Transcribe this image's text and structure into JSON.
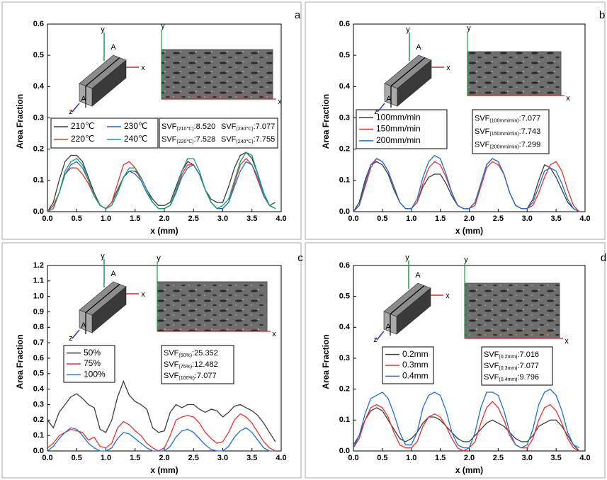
{
  "chart_data": [
    {
      "type": "line",
      "panel_label": "a",
      "xlabel": "x (mm)",
      "ylabel": "Area Fraction",
      "x": [
        0,
        0.1,
        0.2,
        0.3,
        0.4,
        0.5,
        0.6,
        0.7,
        0.8,
        0.9,
        1,
        1.1,
        1.2,
        1.3,
        1.4,
        1.5,
        1.6,
        1.7,
        1.8,
        1.9,
        2,
        2.1,
        2.2,
        2.3,
        2.4,
        2.5,
        2.6,
        2.7,
        2.8,
        2.9,
        3,
        3.1,
        3.2,
        3.3,
        3.4,
        3.5,
        3.6,
        3.7,
        3.8,
        3.9
      ],
      "xlim": [
        0,
        4
      ],
      "xticks": [
        {
          "value": 0,
          "label": "0.0"
        },
        0.5,
        {
          "value": 1,
          "label": "1.0"
        },
        1.5,
        {
          "value": 2,
          "label": "2.0"
        },
        2.5,
        {
          "value": 3,
          "label": "3.0"
        },
        3.5,
        {
          "value": 4,
          "label": "4.0"
        }
      ],
      "ylim": [
        0,
        0.6
      ],
      "yticks": [
        {
          "value": 0,
          "label": "0.0"
        },
        0.1,
        0.2,
        0.3,
        0.4,
        0.5,
        0.6
      ],
      "series": [
        {
          "name": "210℃",
          "color": "#3c3c3c",
          "values": [
            0.0,
            0.03,
            0.1,
            0.16,
            0.18,
            0.18,
            0.16,
            0.11,
            0.06,
            0.02,
            0.01,
            0.03,
            0.07,
            0.11,
            0.13,
            0.13,
            0.11,
            0.07,
            0.04,
            0.02,
            0.02,
            0.03,
            0.08,
            0.13,
            0.16,
            0.15,
            0.12,
            0.07,
            0.04,
            0.03,
            0.03,
            0.08,
            0.14,
            0.18,
            0.19,
            0.17,
            0.12,
            0.06,
            0.02,
            0.03
          ]
        },
        {
          "name": "220℃",
          "color": "#e8312f",
          "values": [
            0.0,
            0.02,
            0.06,
            0.12,
            0.14,
            0.14,
            0.12,
            0.09,
            0.05,
            0.02,
            0.01,
            0.03,
            0.09,
            0.15,
            0.16,
            0.14,
            0.1,
            0.06,
            0.03,
            0.01,
            0.01,
            0.02,
            0.06,
            0.12,
            0.15,
            0.15,
            0.12,
            0.07,
            0.03,
            0.01,
            0.01,
            0.03,
            0.09,
            0.15,
            0.17,
            0.15,
            0.1,
            0.05,
            0.02,
            0.01
          ]
        },
        {
          "name": "230℃",
          "color": "#1f6fd1",
          "values": [
            0.0,
            0.01,
            0.06,
            0.12,
            0.15,
            0.16,
            0.14,
            0.1,
            0.05,
            0.02,
            0.01,
            0.02,
            0.06,
            0.11,
            0.13,
            0.12,
            0.1,
            0.06,
            0.03,
            0.01,
            0.01,
            0.02,
            0.06,
            0.11,
            0.14,
            0.15,
            0.12,
            0.07,
            0.03,
            0.01,
            0.01,
            0.03,
            0.08,
            0.13,
            0.16,
            0.15,
            0.11,
            0.05,
            0.02,
            0.01
          ]
        },
        {
          "name": "240℃",
          "color": "#17a06f",
          "values": [
            0.0,
            0.01,
            0.06,
            0.13,
            0.16,
            0.17,
            0.15,
            0.1,
            0.05,
            0.02,
            0.01,
            0.02,
            0.06,
            0.11,
            0.14,
            0.14,
            0.11,
            0.07,
            0.03,
            0.01,
            0.01,
            0.02,
            0.07,
            0.13,
            0.17,
            0.17,
            0.13,
            0.07,
            0.03,
            0.01,
            0.02,
            0.04,
            0.1,
            0.16,
            0.19,
            0.18,
            0.12,
            0.06,
            0.02,
            0.01
          ]
        }
      ],
      "annotations": [
        {
          "main": "SVF",
          "sub": "(210℃)",
          "rest": ":8.520"
        },
        {
          "main": "SVF",
          "sub": "(220℃)",
          "rest": ":7.528"
        },
        {
          "main": "SVF",
          "sub": "(230℃)",
          "rest": ":7.077"
        },
        {
          "main": "SVF",
          "sub": "(240℃)",
          "rest": ":7.755"
        }
      ],
      "inset_labels": [
        "y",
        "A",
        "x",
        "A",
        "z",
        "y",
        "x"
      ]
    },
    {
      "type": "line",
      "panel_label": "b",
      "xlabel": "x (mm)",
      "ylabel": "Area Fraction",
      "x": [
        0,
        0.1,
        0.2,
        0.3,
        0.4,
        0.5,
        0.6,
        0.7,
        0.8,
        0.9,
        1,
        1.1,
        1.2,
        1.3,
        1.4,
        1.5,
        1.6,
        1.7,
        1.8,
        1.9,
        2,
        2.1,
        2.2,
        2.3,
        2.4,
        2.5,
        2.6,
        2.7,
        2.8,
        2.9,
        3,
        3.1,
        3.2,
        3.3,
        3.4,
        3.5,
        3.6,
        3.7,
        3.8,
        3.9
      ],
      "xlim": [
        0,
        4
      ],
      "xticks": [
        {
          "value": 0,
          "label": "0.0"
        },
        0.5,
        {
          "value": 1,
          "label": "1.0"
        },
        1.5,
        {
          "value": 2,
          "label": "2.0"
        },
        2.5,
        {
          "value": 3,
          "label": "3.0"
        },
        3.5,
        {
          "value": 4,
          "label": "4.0"
        }
      ],
      "ylim": [
        0,
        0.6
      ],
      "yticks": [
        {
          "value": 0,
          "label": "0.0"
        },
        0.1,
        0.2,
        0.3,
        0.4,
        0.5,
        0.6
      ],
      "series": [
        {
          "name": "100mm/min",
          "color": "#3c3c3c",
          "values": [
            0.0,
            0.03,
            0.1,
            0.15,
            0.16,
            0.15,
            0.12,
            0.07,
            0.03,
            0.01,
            0.01,
            0.03,
            0.08,
            0.11,
            0.12,
            0.12,
            0.09,
            0.05,
            0.02,
            0.01,
            0.01,
            0.03,
            0.09,
            0.15,
            0.17,
            0.16,
            0.12,
            0.06,
            0.02,
            0.01,
            0.01,
            0.04,
            0.1,
            0.15,
            0.14,
            0.11,
            0.07,
            0.03,
            0.01,
            0.0
          ]
        },
        {
          "name": "150mm/min",
          "color": "#e8312f",
          "values": [
            0.0,
            0.02,
            0.08,
            0.14,
            0.17,
            0.16,
            0.13,
            0.08,
            0.03,
            0.01,
            0.01,
            0.03,
            0.09,
            0.14,
            0.16,
            0.15,
            0.11,
            0.06,
            0.02,
            0.01,
            0.01,
            0.02,
            0.08,
            0.14,
            0.16,
            0.15,
            0.12,
            0.06,
            0.02,
            0.01,
            0.01,
            0.02,
            0.06,
            0.11,
            0.15,
            0.16,
            0.13,
            0.07,
            0.02,
            0.0
          ]
        },
        {
          "name": "200mm/min",
          "color": "#1f6fd1",
          "values": [
            0.0,
            0.02,
            0.09,
            0.15,
            0.17,
            0.16,
            0.13,
            0.08,
            0.03,
            0.01,
            0.01,
            0.04,
            0.11,
            0.16,
            0.18,
            0.17,
            0.12,
            0.06,
            0.02,
            0.01,
            0.01,
            0.03,
            0.09,
            0.15,
            0.17,
            0.16,
            0.12,
            0.06,
            0.02,
            0.01,
            0.01,
            0.03,
            0.08,
            0.13,
            0.14,
            0.13,
            0.09,
            0.04,
            0.01,
            0.0
          ]
        }
      ],
      "annotations": [
        {
          "main": "SVF",
          "sub": "(100mm/min)",
          "rest": ":7.077"
        },
        {
          "main": "SVF",
          "sub": "(150mm/min)",
          "rest": ":7.743"
        },
        {
          "main": "SVF",
          "sub": "(200mm/min)",
          "rest": ":7.299"
        }
      ],
      "inset_labels": [
        "y",
        "A",
        "x",
        "A",
        "z",
        "y",
        "x"
      ]
    },
    {
      "type": "line",
      "panel_label": "c",
      "xlabel": "x (mm)",
      "ylabel": "Area Fraction",
      "x": [
        0,
        0.1,
        0.2,
        0.3,
        0.4,
        0.5,
        0.6,
        0.7,
        0.8,
        0.9,
        1,
        1.1,
        1.2,
        1.3,
        1.4,
        1.5,
        1.6,
        1.7,
        1.8,
        1.9,
        2,
        2.1,
        2.2,
        2.3,
        2.4,
        2.5,
        2.6,
        2.7,
        2.8,
        2.9,
        3,
        3.1,
        3.2,
        3.3,
        3.4,
        3.5,
        3.6,
        3.7,
        3.8,
        3.9
      ],
      "xlim": [
        0,
        4
      ],
      "xticks": [
        {
          "value": 0,
          "label": "0.0"
        },
        0.5,
        {
          "value": 1,
          "label": "1.0"
        },
        1.5,
        {
          "value": 2,
          "label": "2.0"
        },
        2.5,
        {
          "value": 3,
          "label": "3.0"
        },
        3.5,
        {
          "value": 4,
          "label": "4.0"
        }
      ],
      "ylim": [
        0,
        1.2
      ],
      "yticks": [
        {
          "value": 0,
          "label": "0.0"
        },
        0.1,
        0.2,
        0.3,
        0.4,
        0.5,
        0.6,
        0.7,
        0.8,
        0.9,
        {
          "value": 1,
          "label": "1.0"
        },
        1.1,
        1.2
      ],
      "series": [
        {
          "name": "50%",
          "color": "#3c3c3c",
          "values": [
            0.2,
            0.15,
            0.25,
            0.3,
            0.35,
            0.37,
            0.34,
            0.3,
            0.28,
            0.14,
            0.12,
            0.2,
            0.35,
            0.45,
            0.36,
            0.32,
            0.3,
            0.27,
            0.15,
            0.12,
            0.13,
            0.25,
            0.3,
            0.28,
            0.3,
            0.3,
            0.27,
            0.25,
            0.27,
            0.26,
            0.22,
            0.25,
            0.29,
            0.3,
            0.28,
            0.26,
            0.23,
            0.18,
            0.12,
            0.06
          ]
        },
        {
          "name": "75%",
          "color": "#e8312f",
          "values": [
            0.02,
            0.05,
            0.1,
            0.12,
            0.14,
            0.13,
            0.12,
            0.07,
            0.09,
            0.03,
            0.02,
            0.05,
            0.15,
            0.19,
            0.17,
            0.13,
            0.1,
            0.05,
            0.02,
            0.0,
            0.02,
            0.1,
            0.2,
            0.22,
            0.23,
            0.22,
            0.18,
            0.12,
            0.08,
            0.05,
            0.06,
            0.12,
            0.2,
            0.24,
            0.22,
            0.18,
            0.12,
            0.06,
            0.02,
            0.0
          ]
        },
        {
          "name": "100%",
          "color": "#1f6fd1",
          "values": [
            0.0,
            0.03,
            0.08,
            0.12,
            0.15,
            0.14,
            0.1,
            0.05,
            0.02,
            0.0,
            0.0,
            0.02,
            0.08,
            0.12,
            0.11,
            0.08,
            0.05,
            0.02,
            0.0,
            0.0,
            0.0,
            0.03,
            0.09,
            0.13,
            0.14,
            0.12,
            0.08,
            0.04,
            0.01,
            0.0,
            0.0,
            0.03,
            0.09,
            0.13,
            0.15,
            0.12,
            0.07,
            0.02,
            0.0,
            0.0
          ]
        }
      ],
      "annotations": [
        {
          "main": "SVF",
          "sub": "(50%)",
          "rest": ":25.352"
        },
        {
          "main": "SVF",
          "sub": "(75%)",
          "rest": ":12.482"
        },
        {
          "main": "SVF",
          "sub": "(100%)",
          "rest": ":7.077"
        }
      ],
      "inset_labels": [
        "y",
        "A",
        "x",
        "A",
        "z",
        "y",
        "x"
      ]
    },
    {
      "type": "line",
      "panel_label": "d",
      "xlabel": "x (mm)",
      "ylabel": "Area Fraction",
      "x": [
        0,
        0.1,
        0.2,
        0.3,
        0.4,
        0.5,
        0.6,
        0.7,
        0.8,
        0.9,
        1,
        1.1,
        1.2,
        1.3,
        1.4,
        1.5,
        1.6,
        1.7,
        1.8,
        1.9,
        2,
        2.1,
        2.2,
        2.3,
        2.4,
        2.5,
        2.6,
        2.7,
        2.8,
        2.9,
        3,
        3.1,
        3.2,
        3.3,
        3.4,
        3.5,
        3.6,
        3.7,
        3.8,
        3.9
      ],
      "xlim": [
        0,
        4
      ],
      "xticks": [
        {
          "value": 0,
          "label": "0.0"
        },
        0.5,
        {
          "value": 1,
          "label": "1.0"
        },
        1.5,
        {
          "value": 2,
          "label": "2.0"
        },
        2.5,
        {
          "value": 3,
          "label": "3.0"
        },
        3.5,
        {
          "value": 4,
          "label": "4.0"
        }
      ],
      "ylim": [
        0,
        0.6
      ],
      "yticks": [
        {
          "value": 0,
          "label": "0.0"
        },
        0.1,
        0.2,
        0.3,
        0.4,
        0.5,
        0.6
      ],
      "series": [
        {
          "name": "0.2mm",
          "color": "#3c3c3c",
          "values": [
            0.02,
            0.05,
            0.1,
            0.13,
            0.14,
            0.13,
            0.1,
            0.07,
            0.04,
            0.03,
            0.04,
            0.06,
            0.09,
            0.11,
            0.11,
            0.1,
            0.08,
            0.06,
            0.04,
            0.03,
            0.03,
            0.05,
            0.07,
            0.09,
            0.1,
            0.09,
            0.08,
            0.06,
            0.04,
            0.03,
            0.03,
            0.05,
            0.08,
            0.09,
            0.1,
            0.1,
            0.08,
            0.05,
            0.02,
            0.0
          ]
        },
        {
          "name": "0.3mm",
          "color": "#e8312f",
          "values": [
            0.01,
            0.04,
            0.1,
            0.14,
            0.15,
            0.14,
            0.11,
            0.06,
            0.02,
            0.01,
            0.01,
            0.03,
            0.08,
            0.11,
            0.12,
            0.11,
            0.08,
            0.04,
            0.01,
            0.0,
            0.01,
            0.03,
            0.09,
            0.14,
            0.16,
            0.14,
            0.1,
            0.05,
            0.02,
            0.01,
            0.01,
            0.04,
            0.1,
            0.14,
            0.15,
            0.13,
            0.09,
            0.04,
            0.01,
            0.0
          ]
        },
        {
          "name": "0.4mm",
          "color": "#1f6fd1",
          "values": [
            0.01,
            0.05,
            0.12,
            0.17,
            0.18,
            0.19,
            0.17,
            0.12,
            0.06,
            0.02,
            0.02,
            0.06,
            0.14,
            0.18,
            0.19,
            0.18,
            0.13,
            0.06,
            0.02,
            0.01,
            0.01,
            0.06,
            0.14,
            0.19,
            0.19,
            0.18,
            0.13,
            0.06,
            0.02,
            0.01,
            0.02,
            0.07,
            0.15,
            0.19,
            0.2,
            0.18,
            0.13,
            0.06,
            0.02,
            0.01
          ]
        }
      ],
      "annotations": [
        {
          "main": "SVF",
          "sub": "(0.2mm)",
          "rest": ":7.016"
        },
        {
          "main": "SVF",
          "sub": "(0.3mm)",
          "rest": ":7.077"
        },
        {
          "main": "SVF",
          "sub": "(0.4mm)",
          "rest": ":9.796"
        }
      ],
      "inset_labels": [
        "y",
        "A",
        "x",
        "A",
        "z",
        "y",
        "x"
      ]
    }
  ]
}
